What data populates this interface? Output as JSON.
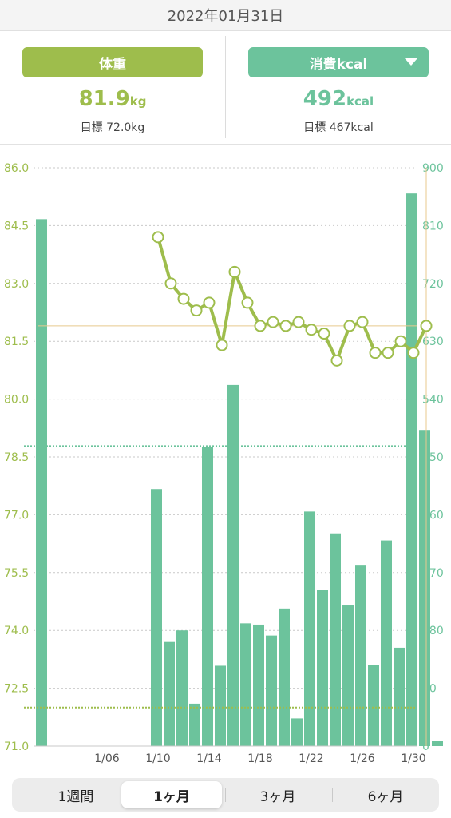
{
  "header": {
    "date": "2022年01月31日"
  },
  "weight": {
    "label": "体重",
    "value": "81.9",
    "unit": "kg",
    "goal": "目標 72.0kg"
  },
  "calories": {
    "label": "消費kcal",
    "value": "492",
    "unit": "kcal",
    "goal": "目標 467kcal"
  },
  "tabs": [
    "1週間",
    "1ヶ月",
    "3ヶ月",
    "6ヶ月"
  ],
  "active_tab": "1ヶ月",
  "colors": {
    "weight": "#9ebd4c",
    "kcal": "#6cc39c",
    "target": "#e8c98e"
  },
  "chart_data": {
    "type": "bar",
    "left_axis": {
      "min": 71.0,
      "max": 86.0,
      "ticks": [
        "71.0",
        "72.5",
        "74.0",
        "75.5",
        "77.0",
        "78.5",
        "80.0",
        "81.5",
        "83.0",
        "84.5",
        "86.0"
      ]
    },
    "right_axis": {
      "min": 0,
      "max": 900,
      "ticks": [
        "0",
        "90",
        "180",
        "270",
        "360",
        "450",
        "540",
        "630",
        "720",
        "810",
        "900"
      ]
    },
    "x_tick_labels": [
      {
        "day": 6,
        "label": "1/06"
      },
      {
        "day": 10,
        "label": "1/10"
      },
      {
        "day": 14,
        "label": "1/14"
      },
      {
        "day": 18,
        "label": "1/18"
      },
      {
        "day": 22,
        "label": "1/22"
      },
      {
        "day": 26,
        "label": "1/26"
      },
      {
        "day": 30,
        "label": "1/30"
      }
    ],
    "kcal_bars": [
      {
        "day": 1,
        "value": 820
      },
      {
        "day": 2,
        "value": 0
      },
      {
        "day": 3,
        "value": 0
      },
      {
        "day": 4,
        "value": 0
      },
      {
        "day": 5,
        "value": 0
      },
      {
        "day": 6,
        "value": 0
      },
      {
        "day": 7,
        "value": 0
      },
      {
        "day": 8,
        "value": 0
      },
      {
        "day": 9,
        "value": 0
      },
      {
        "day": 10,
        "value": 400
      },
      {
        "day": 11,
        "value": 162
      },
      {
        "day": 12,
        "value": 180
      },
      {
        "day": 13,
        "value": 66
      },
      {
        "day": 14,
        "value": 465
      },
      {
        "day": 15,
        "value": 125
      },
      {
        "day": 16,
        "value": 562
      },
      {
        "day": 17,
        "value": 191
      },
      {
        "day": 18,
        "value": 189
      },
      {
        "day": 19,
        "value": 172
      },
      {
        "day": 20,
        "value": 214
      },
      {
        "day": 21,
        "value": 43
      },
      {
        "day": 22,
        "value": 365
      },
      {
        "day": 23,
        "value": 243
      },
      {
        "day": 24,
        "value": 331
      },
      {
        "day": 25,
        "value": 220
      },
      {
        "day": 26,
        "value": 282
      },
      {
        "day": 27,
        "value": 126
      },
      {
        "day": 28,
        "value": 320
      },
      {
        "day": 29,
        "value": 153
      },
      {
        "day": 30,
        "value": 860
      },
      {
        "day": 31,
        "value": 492
      },
      {
        "day": 32,
        "value": 8
      }
    ],
    "weight_series": [
      {
        "day": 10,
        "value": 84.2
      },
      {
        "day": 11,
        "value": 83.0
      },
      {
        "day": 12,
        "value": 82.6
      },
      {
        "day": 13,
        "value": 82.3
      },
      {
        "day": 14,
        "value": 82.5
      },
      {
        "day": 15,
        "value": 81.4
      },
      {
        "day": 16,
        "value": 83.3
      },
      {
        "day": 17,
        "value": 82.5
      },
      {
        "day": 18,
        "value": 81.9
      },
      {
        "day": 19,
        "value": 82.0
      },
      {
        "day": 20,
        "value": 81.9
      },
      {
        "day": 21,
        "value": 82.0
      },
      {
        "day": 22,
        "value": 81.8
      },
      {
        "day": 23,
        "value": 81.7
      },
      {
        "day": 24,
        "value": 81.0
      },
      {
        "day": 25,
        "value": 81.9
      },
      {
        "day": 26,
        "value": 82.0
      },
      {
        "day": 27,
        "value": 81.2
      },
      {
        "day": 28,
        "value": 81.2
      },
      {
        "day": 29,
        "value": 81.5
      },
      {
        "day": 30,
        "value": 81.2
      },
      {
        "day": 31,
        "value": 81.9
      }
    ],
    "kcal_goal": 467,
    "weight_goal": 72.0,
    "selected": {
      "day": 31,
      "weight": 81.9
    },
    "grid": true
  }
}
